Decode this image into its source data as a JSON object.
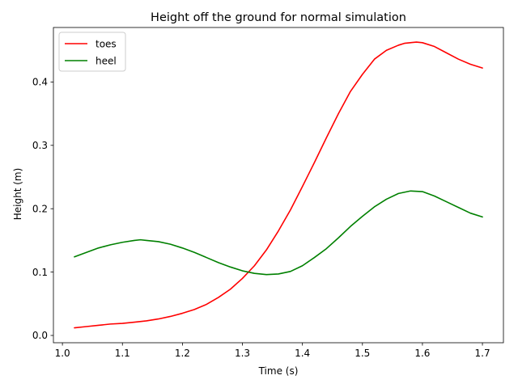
{
  "chart_data": {
    "type": "line",
    "title": "Height off the ground for normal simulation",
    "xlabel": "Time (s)",
    "ylabel": "Height (m)",
    "xlim": [
      0.985,
      1.735
    ],
    "ylim": [
      -0.0115,
      0.486
    ],
    "xticks": [
      1.0,
      1.1,
      1.2,
      1.3,
      1.4,
      1.5,
      1.6,
      1.7
    ],
    "xtick_labels": [
      "1.0",
      "1.1",
      "1.2",
      "1.3",
      "1.4",
      "1.5",
      "1.6",
      "1.7"
    ],
    "yticks": [
      0.0,
      0.1,
      0.2,
      0.3,
      0.4
    ],
    "ytick_labels": [
      "0.0",
      "0.1",
      "0.2",
      "0.3",
      "0.4"
    ],
    "grid": false,
    "legend_position": "upper-left",
    "series": [
      {
        "name": "toes",
        "color": "#ff0000",
        "x": [
          1.02,
          1.04,
          1.06,
          1.08,
          1.1,
          1.12,
          1.14,
          1.16,
          1.18,
          1.2,
          1.22,
          1.24,
          1.26,
          1.28,
          1.3,
          1.32,
          1.34,
          1.36,
          1.38,
          1.4,
          1.42,
          1.44,
          1.46,
          1.48,
          1.5,
          1.52,
          1.54,
          1.56,
          1.57,
          1.58,
          1.59,
          1.6,
          1.62,
          1.64,
          1.66,
          1.68,
          1.7
        ],
        "y": [
          0.012,
          0.014,
          0.016,
          0.018,
          0.019,
          0.021,
          0.023,
          0.026,
          0.03,
          0.035,
          0.041,
          0.049,
          0.06,
          0.073,
          0.09,
          0.11,
          0.135,
          0.165,
          0.198,
          0.235,
          0.273,
          0.312,
          0.35,
          0.385,
          0.412,
          0.436,
          0.45,
          0.458,
          0.461,
          0.462,
          0.463,
          0.462,
          0.456,
          0.446,
          0.436,
          0.428,
          0.422
        ]
      },
      {
        "name": "heel",
        "color": "#008000",
        "x": [
          1.02,
          1.04,
          1.06,
          1.08,
          1.1,
          1.12,
          1.13,
          1.14,
          1.16,
          1.18,
          1.2,
          1.22,
          1.24,
          1.26,
          1.28,
          1.3,
          1.32,
          1.34,
          1.36,
          1.38,
          1.4,
          1.42,
          1.44,
          1.46,
          1.48,
          1.5,
          1.52,
          1.54,
          1.56,
          1.58,
          1.6,
          1.62,
          1.64,
          1.66,
          1.68,
          1.7
        ],
        "y": [
          0.124,
          0.131,
          0.138,
          0.143,
          0.147,
          0.15,
          0.151,
          0.15,
          0.148,
          0.144,
          0.138,
          0.131,
          0.123,
          0.115,
          0.108,
          0.102,
          0.098,
          0.096,
          0.097,
          0.101,
          0.11,
          0.123,
          0.137,
          0.154,
          0.172,
          0.188,
          0.203,
          0.215,
          0.224,
          0.228,
          0.227,
          0.22,
          0.211,
          0.202,
          0.193,
          0.187
        ]
      }
    ]
  }
}
